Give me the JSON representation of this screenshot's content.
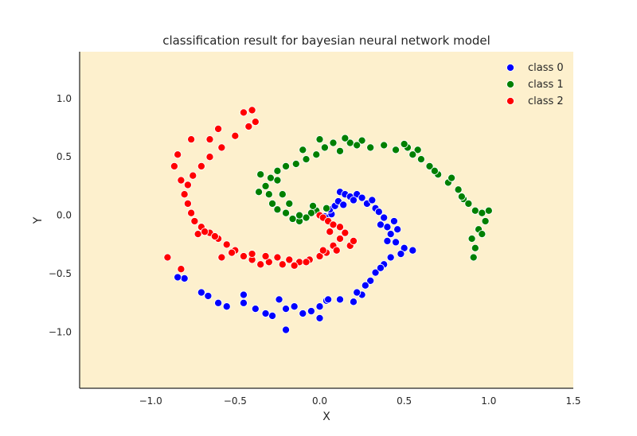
{
  "chart_data": {
    "type": "scatter",
    "title": "classification result for bayesian neural network model",
    "xlabel": "X",
    "ylabel": "Y",
    "xlim": [
      -1.42,
      1.5
    ],
    "ylim": [
      -1.48,
      1.4
    ],
    "xticks": [
      -1.0,
      -0.5,
      0.0,
      0.5,
      1.0,
      1.5
    ],
    "xtick_labels": [
      "−1.0",
      "−0.5",
      "0.0",
      "0.5",
      "1.0",
      "1.5"
    ],
    "yticks": [
      -1.0,
      -0.5,
      0.0,
      0.5,
      1.0
    ],
    "ytick_labels": [
      "−1.0",
      "−0.5",
      "0.0",
      "0.5",
      "1.0"
    ],
    "grid": false,
    "legend_position": "top-right",
    "plot_background": "#fdf0cd",
    "series": [
      {
        "name": "class 0",
        "color": "#0000ff",
        "points": [
          [
            0.0,
            0.0
          ],
          [
            0.03,
            -0.01
          ],
          [
            0.05,
            -0.02
          ],
          [
            0.07,
            0.01
          ],
          [
            0.06,
            0.05
          ],
          [
            0.09,
            0.08
          ],
          [
            0.11,
            0.12
          ],
          [
            0.12,
            0.2
          ],
          [
            0.15,
            0.18
          ],
          [
            0.18,
            0.16
          ],
          [
            0.22,
            0.18
          ],
          [
            0.25,
            0.15
          ],
          [
            0.28,
            0.1
          ],
          [
            0.31,
            0.13
          ],
          [
            0.33,
            0.06
          ],
          [
            0.35,
            0.03
          ],
          [
            0.38,
            -0.02
          ],
          [
            0.36,
            -0.08
          ],
          [
            0.4,
            -0.1
          ],
          [
            0.42,
            -0.16
          ],
          [
            0.4,
            -0.22
          ],
          [
            0.45,
            -0.23
          ],
          [
            0.5,
            -0.28
          ],
          [
            0.55,
            -0.3
          ],
          [
            0.48,
            -0.33
          ],
          [
            0.42,
            -0.36
          ],
          [
            0.38,
            -0.42
          ],
          [
            0.33,
            -0.49
          ],
          [
            0.3,
            -0.56
          ],
          [
            0.27,
            -0.6
          ],
          [
            0.25,
            -0.68
          ],
          [
            0.2,
            -0.74
          ],
          [
            0.12,
            -0.72
          ],
          [
            0.04,
            -0.73
          ],
          [
            0.0,
            -0.78
          ],
          [
            0.0,
            -0.88
          ],
          [
            -0.05,
            -0.82
          ],
          [
            -0.1,
            -0.84
          ],
          [
            -0.15,
            -0.78
          ],
          [
            -0.2,
            -0.8
          ],
          [
            -0.24,
            -0.72
          ],
          [
            -0.28,
            -0.86
          ],
          [
            -0.32,
            -0.84
          ],
          [
            -0.38,
            -0.8
          ],
          [
            -0.45,
            -0.68
          ],
          [
            -0.55,
            -0.78
          ],
          [
            -0.6,
            -0.75
          ],
          [
            -0.66,
            -0.69
          ],
          [
            -0.7,
            -0.66
          ],
          [
            -0.8,
            -0.54
          ],
          [
            -0.84,
            -0.53
          ],
          [
            -0.2,
            -0.98
          ],
          [
            0.05,
            -0.72
          ],
          [
            0.22,
            -0.66
          ],
          [
            0.36,
            -0.45
          ],
          [
            0.44,
            -0.05
          ],
          [
            0.46,
            -0.12
          ],
          [
            0.14,
            0.09
          ],
          [
            0.2,
            0.13
          ],
          [
            -0.45,
            -0.75
          ]
        ]
      },
      {
        "name": "class 1",
        "color": "#008000",
        "points": [
          [
            0.0,
            0.0
          ],
          [
            -0.02,
            0.04
          ],
          [
            -0.05,
            0.02
          ],
          [
            -0.08,
            -0.02
          ],
          [
            -0.12,
            -0.05
          ],
          [
            -0.16,
            -0.03
          ],
          [
            -0.2,
            0.02
          ],
          [
            -0.25,
            0.05
          ],
          [
            -0.28,
            0.1
          ],
          [
            -0.3,
            0.18
          ],
          [
            -0.32,
            0.25
          ],
          [
            -0.29,
            0.32
          ],
          [
            -0.25,
            0.38
          ],
          [
            -0.2,
            0.42
          ],
          [
            -0.14,
            0.44
          ],
          [
            -0.08,
            0.48
          ],
          [
            -0.02,
            0.52
          ],
          [
            0.03,
            0.58
          ],
          [
            0.08,
            0.62
          ],
          [
            0.12,
            0.55
          ],
          [
            0.18,
            0.62
          ],
          [
            0.25,
            0.64
          ],
          [
            0.3,
            0.58
          ],
          [
            0.38,
            0.6
          ],
          [
            0.45,
            0.56
          ],
          [
            0.52,
            0.58
          ],
          [
            0.58,
            0.56
          ],
          [
            0.6,
            0.48
          ],
          [
            0.65,
            0.42
          ],
          [
            0.7,
            0.35
          ],
          [
            0.76,
            0.28
          ],
          [
            0.82,
            0.22
          ],
          [
            0.85,
            0.14
          ],
          [
            0.88,
            0.1
          ],
          [
            0.92,
            0.04
          ],
          [
            0.96,
            0.02
          ],
          [
            0.98,
            -0.05
          ],
          [
            0.94,
            -0.12
          ],
          [
            0.9,
            -0.2
          ],
          [
            0.92,
            -0.28
          ],
          [
            0.91,
            -0.36
          ],
          [
            -0.35,
            0.35
          ],
          [
            -0.22,
            0.18
          ],
          [
            -0.18,
            0.1
          ],
          [
            0.0,
            0.65
          ],
          [
            0.15,
            0.66
          ],
          [
            0.22,
            0.6
          ],
          [
            -0.1,
            0.56
          ],
          [
            0.5,
            0.61
          ],
          [
            0.55,
            0.52
          ],
          [
            0.68,
            0.38
          ],
          [
            0.78,
            0.32
          ],
          [
            0.84,
            0.16
          ],
          [
            0.96,
            -0.16
          ],
          [
            1.0,
            0.04
          ],
          [
            -0.12,
            0.0
          ],
          [
            -0.04,
            0.08
          ],
          [
            0.04,
            0.06
          ],
          [
            -0.36,
            0.2
          ],
          [
            -0.25,
            0.3
          ]
        ]
      },
      {
        "name": "class 2",
        "color": "#ff0000",
        "points": [
          [
            0.0,
            0.0
          ],
          [
            0.02,
            -0.02
          ],
          [
            0.05,
            -0.05
          ],
          [
            0.08,
            -0.08
          ],
          [
            0.12,
            -0.1
          ],
          [
            0.15,
            -0.15
          ],
          [
            0.12,
            -0.2
          ],
          [
            0.08,
            -0.26
          ],
          [
            0.04,
            -0.32
          ],
          [
            0.0,
            -0.35
          ],
          [
            -0.06,
            -0.38
          ],
          [
            -0.12,
            -0.4
          ],
          [
            -0.18,
            -0.38
          ],
          [
            -0.25,
            -0.36
          ],
          [
            -0.3,
            -0.4
          ],
          [
            -0.35,
            -0.42
          ],
          [
            -0.4,
            -0.38
          ],
          [
            -0.45,
            -0.35
          ],
          [
            -0.5,
            -0.3
          ],
          [
            -0.55,
            -0.25
          ],
          [
            -0.6,
            -0.2
          ],
          [
            -0.65,
            -0.15
          ],
          [
            -0.7,
            -0.1
          ],
          [
            -0.74,
            -0.05
          ],
          [
            -0.76,
            0.02
          ],
          [
            -0.78,
            0.1
          ],
          [
            -0.8,
            0.18
          ],
          [
            -0.78,
            0.26
          ],
          [
            -0.75,
            0.34
          ],
          [
            -0.7,
            0.42
          ],
          [
            -0.65,
            0.5
          ],
          [
            -0.58,
            0.58
          ],
          [
            -0.5,
            0.68
          ],
          [
            -0.42,
            0.76
          ],
          [
            -0.38,
            0.8
          ],
          [
            -0.45,
            0.88
          ],
          [
            -0.4,
            0.9
          ],
          [
            -0.6,
            0.74
          ],
          [
            -0.65,
            0.65
          ],
          [
            -0.76,
            0.65
          ],
          [
            -0.84,
            0.52
          ],
          [
            -0.86,
            0.42
          ],
          [
            -0.9,
            -0.36
          ],
          [
            -0.82,
            -0.46
          ],
          [
            -0.72,
            -0.16
          ],
          [
            -0.68,
            -0.14
          ],
          [
            -0.62,
            -0.18
          ],
          [
            -0.58,
            -0.36
          ],
          [
            -0.52,
            -0.32
          ],
          [
            -0.4,
            -0.33
          ],
          [
            -0.32,
            -0.35
          ],
          [
            -0.22,
            -0.42
          ],
          [
            -0.15,
            -0.43
          ],
          [
            -0.08,
            -0.4
          ],
          [
            0.02,
            -0.3
          ],
          [
            0.1,
            -0.3
          ],
          [
            0.18,
            -0.26
          ],
          [
            0.2,
            -0.22
          ],
          [
            0.06,
            -0.14
          ],
          [
            -0.82,
            0.3
          ]
        ]
      }
    ]
  }
}
